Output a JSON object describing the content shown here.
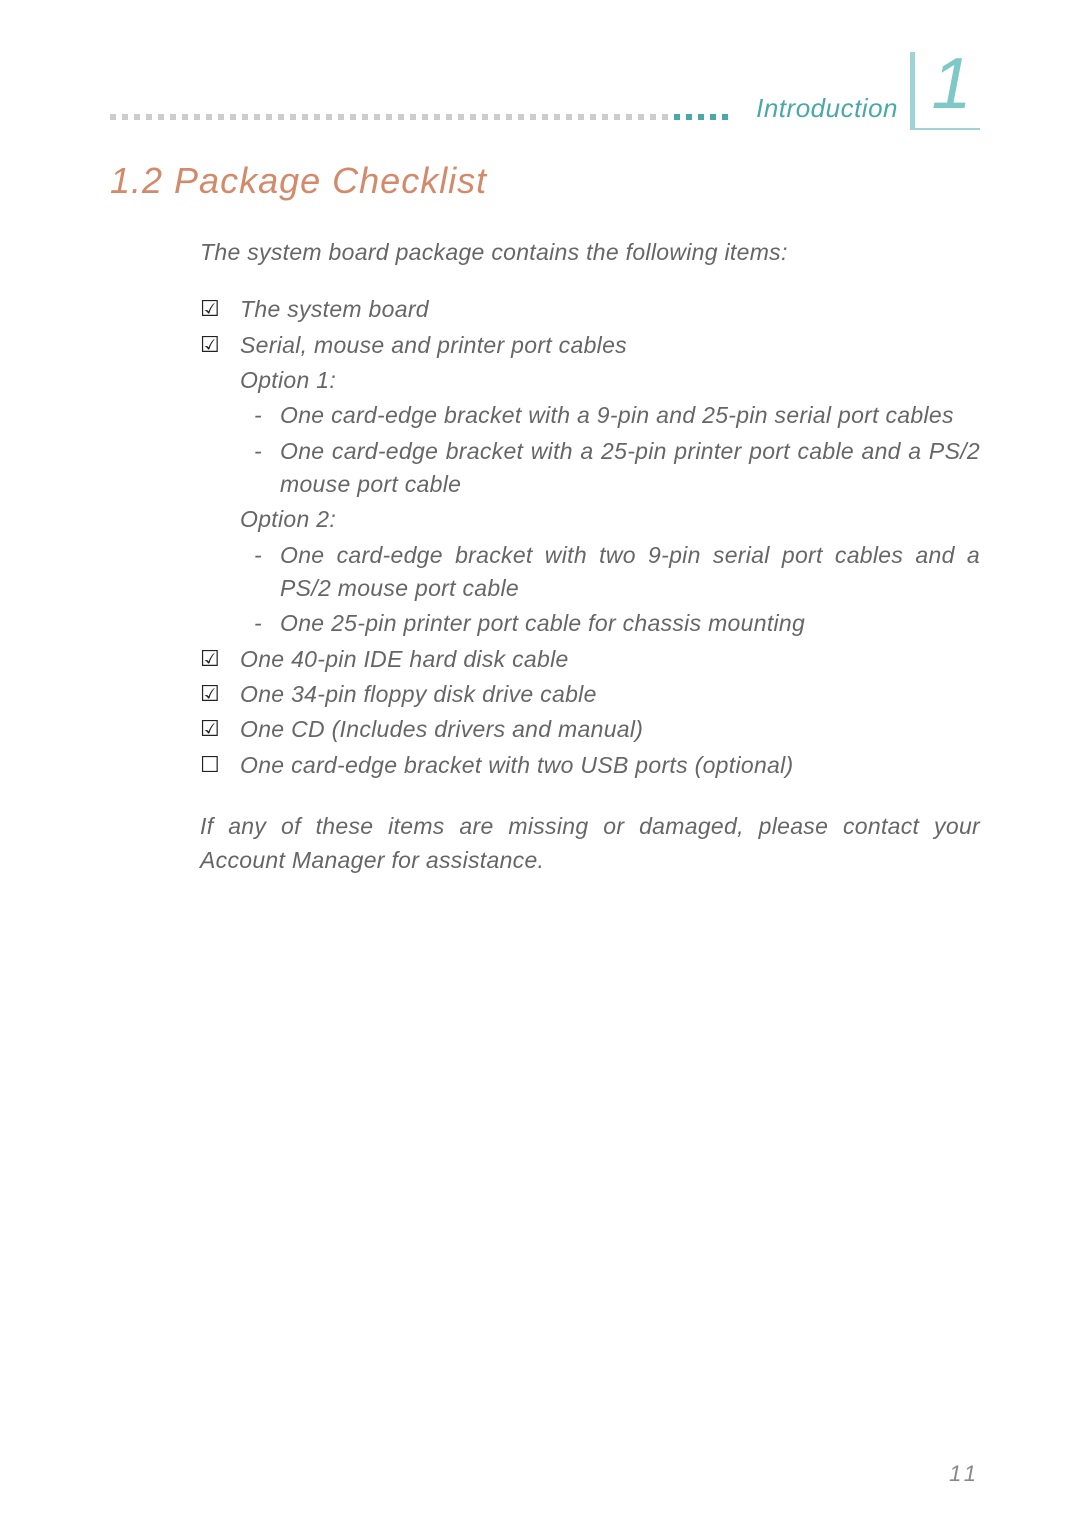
{
  "header": {
    "label": "Introduction",
    "chapter_number": "1"
  },
  "section": {
    "title": "1.2 Package Checklist",
    "intro": "The system board package contains the following items:",
    "closing": "If any of these items are missing or damaged, please contact your Account Manager for assistance."
  },
  "items": {
    "system_board": "The system board",
    "serial_cables": "Serial, mouse and printer port cables",
    "option1_label": "Option 1:",
    "option1_a": "One card-edge bracket with a 9-pin and 25-pin serial port cables",
    "option1_b": "One card-edge bracket with a 25-pin printer port cable and a PS/2 mouse port cable",
    "option2_label": "Option 2:",
    "option2_a": "One card-edge bracket with two 9-pin serial port cables and a PS/2 mouse port cable",
    "option2_b": "One 25-pin printer port cable for chassis mounting",
    "ide_cable": "One 40-pin IDE hard disk cable",
    "floppy_cable": "One 34-pin floppy disk drive cable",
    "cd": "One CD (Includes drivers and manual)",
    "usb_bracket": "One card-edge bracket with two USB ports (optional)"
  },
  "glyphs": {
    "checked": "☑",
    "unchecked": "☐",
    "dash": "-"
  },
  "page_number": "11",
  "colors": {
    "accent_teal": "#4aa8a8",
    "accent_orange": "#d28a6a",
    "text_gray": "#666666"
  }
}
